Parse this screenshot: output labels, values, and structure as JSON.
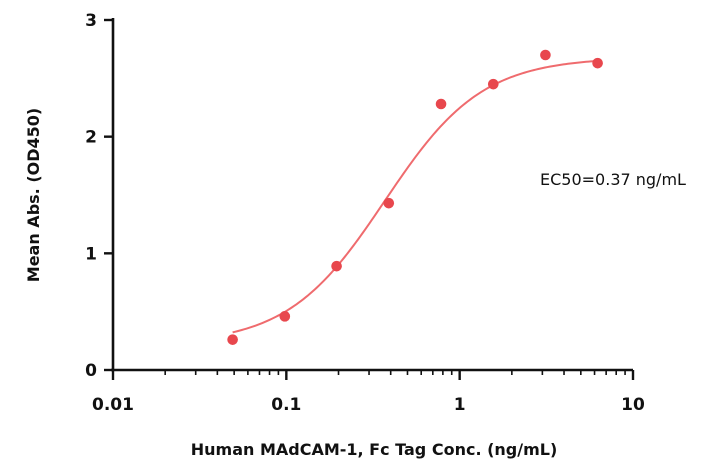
{
  "chart_data": {
    "type": "scatter",
    "xlabel": "Human MAdCAM-1, Fc Tag Conc. (ng/mL)",
    "ylabel": "Mean Abs. (OD450)",
    "x_scale": "log",
    "xlim": [
      0.01,
      10
    ],
    "ylim": [
      0,
      3
    ],
    "x_ticks": [
      0.01,
      0.1,
      1,
      10
    ],
    "x_tick_labels": [
      "0.01",
      "0.1",
      "1",
      "10"
    ],
    "y_ticks": [
      0,
      1,
      2,
      3
    ],
    "y_tick_labels": [
      "0",
      "1",
      "2",
      "3"
    ],
    "grid": false,
    "colors": {
      "series": "#e8474d",
      "fit": "#ef6b6e",
      "axis": "#111111"
    },
    "series": [
      {
        "x": [
          0.049,
          0.098,
          0.195,
          0.39,
          0.781,
          1.563,
          3.125,
          6.25
        ],
        "y": [
          0.26,
          0.46,
          0.89,
          1.43,
          2.28,
          2.45,
          2.7,
          2.63
        ]
      }
    ],
    "fit": {
      "model": "4PL",
      "bottom": 0.22,
      "top": 2.68,
      "ec50": 0.37,
      "hill": 1.55
    },
    "annotations": [
      {
        "text": "EC50=0.37 ng/mL"
      }
    ]
  }
}
